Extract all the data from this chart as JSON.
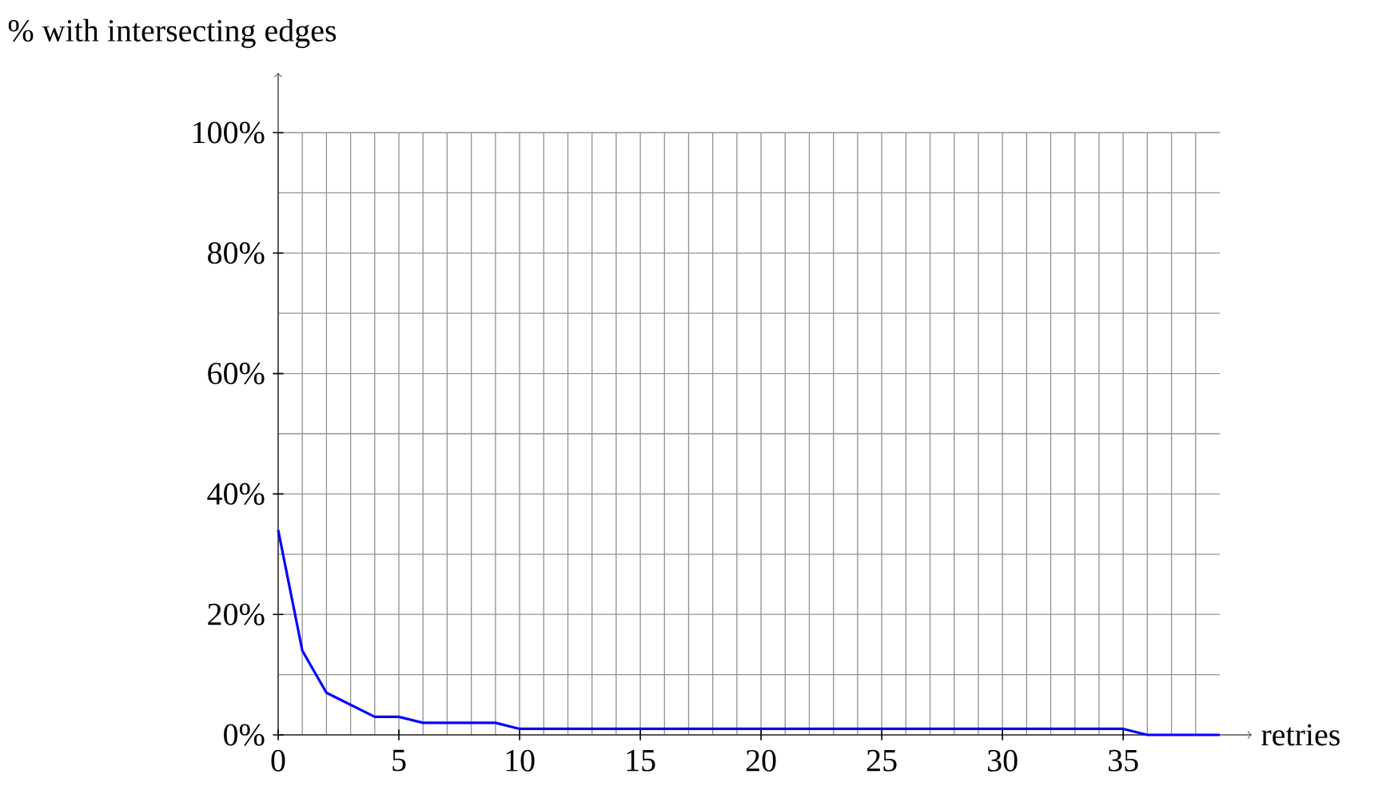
{
  "chart_data": {
    "type": "line",
    "xlabel": "retries",
    "ylabel": "% with intersecting edges",
    "x": [
      0,
      1,
      2,
      3,
      4,
      5,
      6,
      7,
      8,
      9,
      10,
      11,
      12,
      13,
      14,
      15,
      16,
      17,
      18,
      19,
      20,
      21,
      22,
      23,
      24,
      25,
      26,
      27,
      28,
      29,
      30,
      31,
      32,
      33,
      34,
      35,
      36,
      37,
      38,
      39
    ],
    "series": [
      {
        "color": "#0000ff",
        "values": [
          34,
          14,
          7,
          5,
          3,
          3,
          2,
          2,
          2,
          2,
          1,
          1,
          1,
          1,
          1,
          1,
          1,
          1,
          1,
          1,
          1,
          1,
          1,
          1,
          1,
          1,
          1,
          1,
          1,
          1,
          1,
          1,
          1,
          1,
          1,
          1,
          0,
          0,
          0,
          0
        ]
      }
    ],
    "xlim": [
      0,
      39
    ],
    "ylim": [
      0,
      100
    ],
    "xticks": [
      0,
      {
        "value": 1,
        "label": null
      },
      {
        "value": 2,
        "label": null
      },
      {
        "value": 3,
        "label": null
      },
      {
        "value": 4,
        "label": null
      },
      5,
      {
        "value": 6,
        "label": null
      },
      {
        "value": 7,
        "label": null
      },
      {
        "value": 8,
        "label": null
      },
      {
        "value": 9,
        "label": null
      },
      10,
      {
        "value": 11,
        "label": null
      },
      {
        "value": 12,
        "label": null
      },
      {
        "value": 13,
        "label": null
      },
      {
        "value": 14,
        "label": null
      },
      15,
      {
        "value": 16,
        "label": null
      },
      {
        "value": 17,
        "label": null
      },
      {
        "value": 18,
        "label": null
      },
      {
        "value": 19,
        "label": null
      },
      20,
      {
        "value": 21,
        "label": null
      },
      {
        "value": 22,
        "label": null
      },
      {
        "value": 23,
        "label": null
      },
      {
        "value": 24,
        "label": null
      },
      25,
      {
        "value": 26,
        "label": null
      },
      {
        "value": 27,
        "label": null
      },
      {
        "value": 28,
        "label": null
      },
      {
        "value": 29,
        "label": null
      },
      30,
      {
        "value": 31,
        "label": null
      },
      {
        "value": 32,
        "label": null
      },
      {
        "value": 33,
        "label": null
      },
      {
        "value": 34,
        "label": null
      },
      35,
      {
        "value": 36,
        "label": null
      },
      {
        "value": 37,
        "label": null
      },
      {
        "value": 38,
        "label": null
      }
    ],
    "yticks": [
      {
        "value": 0,
        "label": "0%"
      },
      {
        "value": 10,
        "label": null
      },
      {
        "value": 20,
        "label": "20%"
      },
      {
        "value": 30,
        "label": null
      },
      {
        "value": 40,
        "label": "40%"
      },
      {
        "value": 50,
        "label": null
      },
      {
        "value": 60,
        "label": "60%"
      },
      {
        "value": 70,
        "label": null
      },
      {
        "value": 80,
        "label": "80%"
      },
      {
        "value": 90,
        "label": null
      },
      {
        "value": 100,
        "label": "100%"
      }
    ],
    "grid": true
  }
}
